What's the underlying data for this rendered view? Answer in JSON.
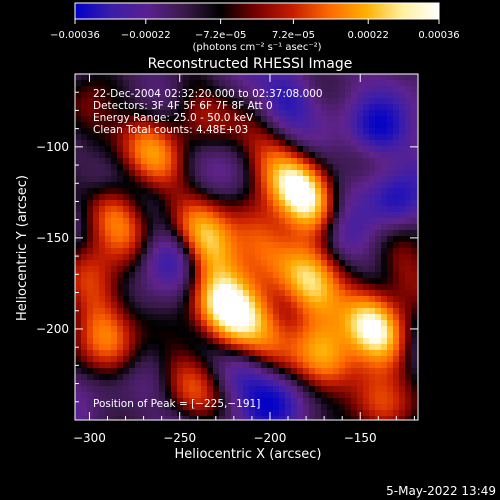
{
  "chart_data": {
    "type": "heatmap",
    "title": "Reconstructed RHESSI Image",
    "xlabel": "Heliocentric X (arcsec)",
    "ylabel": "Heliocentric Y (arcsec)",
    "xlim": [
      -308,
      -118
    ],
    "ylim": [
      -250,
      -60
    ],
    "xticks": [
      -300,
      -250,
      -200,
      -150
    ],
    "xtick_labels": [
      "−300",
      "−250",
      "−200",
      "−150"
    ],
    "yticks": [
      -100,
      -150,
      -200
    ],
    "ytick_labels": [
      "−100",
      "−150",
      "−200"
    ],
    "colorbar": {
      "range": [
        -0.00036,
        0.00036
      ],
      "ticks": [
        -0.00036,
        -0.00022,
        -7.2e-05,
        7.2e-05,
        0.00022,
        0.00036
      ],
      "tick_labels": [
        "−0.00036",
        "−0.00022",
        "−7.2e−05",
        "7.2e−05",
        "0.00022",
        "0.00036"
      ],
      "units_label": "(photons cm⁻² s⁻¹ asec⁻²)",
      "colormap": [
        "#0000cc",
        "#3a1ea8",
        "#5a2090",
        "#3a1a4a",
        "#000000",
        "#7a0000",
        "#c81e00",
        "#ff6a00",
        "#ffb000",
        "#fff0a0",
        "#ffffff"
      ]
    },
    "sources": [
      {
        "x": -180,
        "y": -128,
        "intensity": 1.0
      },
      {
        "x": -225,
        "y": -191,
        "intensity": 1.0
      },
      {
        "x": -177,
        "y": -177,
        "intensity": 0.85
      },
      {
        "x": -142,
        "y": -200,
        "intensity": 0.9
      },
      {
        "x": -235,
        "y": -152,
        "intensity": 0.75
      },
      {
        "x": -285,
        "y": -138,
        "intensity": 0.7
      },
      {
        "x": -290,
        "y": -205,
        "intensity": 0.6
      },
      {
        "x": -265,
        "y": -105,
        "intensity": 0.6
      },
      {
        "x": -205,
        "y": -152,
        "intensity": 0.65
      },
      {
        "x": -170,
        "y": -215,
        "intensity": 0.7
      },
      {
        "x": -245,
        "y": -230,
        "intensity": 0.45
      },
      {
        "x": -140,
        "y": -240,
        "intensity": 0.5
      },
      {
        "x": -300,
        "y": -175,
        "intensity": 0.5
      },
      {
        "x": -240,
        "y": -80,
        "intensity": 0.4
      },
      {
        "x": -300,
        "y": -85,
        "intensity": 0.4
      },
      {
        "x": -125,
        "y": -170,
        "intensity": 0.45
      },
      {
        "x": -200,
        "y": -105,
        "intensity": 0.4
      },
      {
        "x": -205,
        "y": -200,
        "intensity": 0.5
      }
    ],
    "negative_regions": [
      {
        "x": -140,
        "y": -90,
        "intensity": 0.7
      },
      {
        "x": -130,
        "y": -130,
        "intensity": 0.6
      },
      {
        "x": -200,
        "y": -240,
        "intensity": 0.6
      },
      {
        "x": -190,
        "y": -75,
        "intensity": 0.5
      },
      {
        "x": -255,
        "y": -160,
        "intensity": 0.4
      },
      {
        "x": -160,
        "y": -150,
        "intensity": 0.45
      },
      {
        "x": -215,
        "y": -225,
        "intensity": 0.4
      },
      {
        "x": -295,
        "y": -120,
        "intensity": 0.35
      }
    ],
    "annotations": [
      "22-Dec-2004 02:32:20.000 to 02:37:08.000",
      "Detectors: 3F 4F 5F 6F 7F 8F Att 0",
      "Energy Range: 25.0 - 50.0 keV",
      "Clean     Total counts: 4.48E+03"
    ],
    "peak_label": "Position of Peak = [−225,−191]",
    "timestamp": "5-May-2022 13:49"
  }
}
